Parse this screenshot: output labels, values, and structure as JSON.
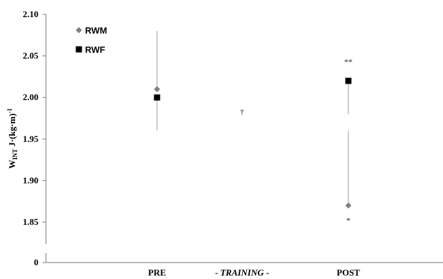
{
  "chart_data": {
    "type": "scatter",
    "ylabel": {
      "main": "W",
      "subscript": "INT",
      "unit": " J·(kg·m)",
      "superscript": "-1"
    },
    "ylim": [
      1.8,
      2.1
    ],
    "y_ticks": [
      "2.10",
      "2.05",
      "2.00",
      "1.95",
      "1.90",
      "1.85"
    ],
    "y_tick_values": [
      2.1,
      2.05,
      2.0,
      1.95,
      1.9,
      1.85
    ],
    "y_break_tick": "0",
    "axis_break": true,
    "categories": [
      "PRE",
      "- TRAINING -",
      "POST"
    ],
    "category_parts": [
      {
        "pre": "PRE",
        "italic": "",
        "post": ""
      },
      {
        "pre": "- ",
        "italic": "TRAINING",
        "post": " -"
      },
      {
        "pre": "POST",
        "italic": "",
        "post": ""
      }
    ],
    "series": [
      {
        "name": "RWM",
        "marker": "diamond",
        "color": "#808080",
        "points": [
          {
            "category": "PRE",
            "value": 2.01,
            "err_low": 2.01,
            "err_high": 2.08
          },
          {
            "category": "POST",
            "value": 1.87,
            "err_low": 1.87,
            "err_high": 1.96
          }
        ]
      },
      {
        "name": "RWF",
        "marker": "square",
        "color": "#000000",
        "points": [
          {
            "category": "PRE",
            "value": 2.0,
            "err_low": 1.96,
            "err_high": 2.0
          },
          {
            "category": "POST",
            "value": 2.02,
            "err_low": 1.98,
            "err_high": 2.02
          }
        ]
      }
    ],
    "annotations": [
      {
        "text": "**",
        "category": "POST",
        "y": 2.043
      },
      {
        "text": "*",
        "category": "POST",
        "y": 1.852
      },
      {
        "text": "†",
        "category": "- TRAINING -",
        "y": 1.983
      }
    ],
    "legend_position": "top-left",
    "grid": false
  }
}
